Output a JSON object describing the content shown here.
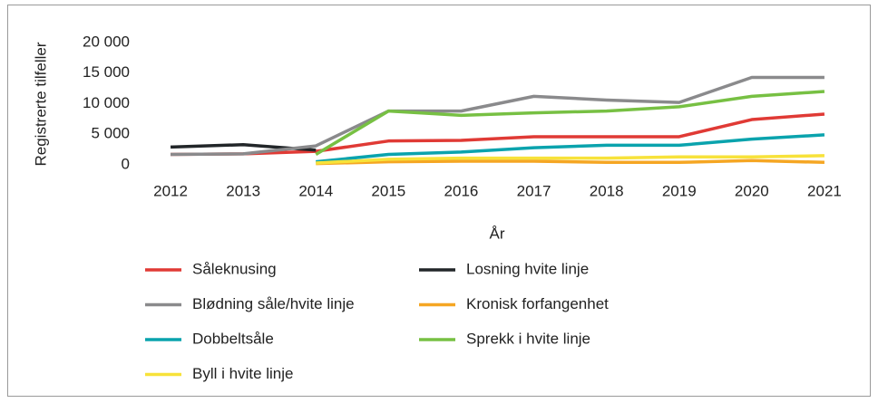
{
  "chart_data": {
    "type": "line",
    "y_label": "Registrerte tilfeller",
    "x_label": "År",
    "categories": [
      "2012",
      "2013",
      "2014",
      "2015",
      "2016",
      "2017",
      "2018",
      "2019",
      "2020",
      "2021"
    ],
    "ylim": [
      0,
      20000
    ],
    "yticks": [
      0,
      {
        "value": 5000,
        "label": "5 000"
      },
      {
        "value": 10000,
        "label": "10 000"
      },
      {
        "value": 15000,
        "label": "15 000"
      },
      {
        "value": 20000,
        "label": "20 000"
      }
    ],
    "series": [
      {
        "name": "Såleknusing",
        "color": "#e03a35",
        "values": [
          1700,
          1800,
          2200,
          3900,
          4000,
          4600,
          4600,
          4600,
          7400,
          8300
        ]
      },
      {
        "name": "Losning hvite linje",
        "color": "#222629",
        "values": [
          2900,
          3300,
          2400,
          null,
          null,
          null,
          null,
          null,
          null,
          null
        ]
      },
      {
        "name": "Blødning såle/hvite linje",
        "color": "#8a8a8c",
        "values": [
          1700,
          1800,
          3100,
          8800,
          8800,
          11200,
          10600,
          10200,
          14300,
          14300
        ]
      },
      {
        "name": "Kronisk forfangenhet",
        "color": "#f5a623",
        "values": [
          null,
          null,
          200,
          500,
          600,
          600,
          400,
          400,
          700,
          400
        ]
      },
      {
        "name": "Dobbeltsåle",
        "color": "#0aa3ad",
        "values": [
          null,
          null,
          500,
          1700,
          2100,
          2800,
          3200,
          3200,
          4200,
          4900
        ]
      },
      {
        "name": "Sprekk i hvite linje",
        "color": "#77c043",
        "values": [
          null,
          null,
          1700,
          8800,
          8100,
          8500,
          8800,
          9500,
          11200,
          12000
        ]
      },
      {
        "name": "Byll i hvite linje",
        "color": "#f7e23a",
        "values": [
          null,
          null,
          300,
          900,
          1100,
          1100,
          1100,
          1300,
          1300,
          1500
        ]
      }
    ]
  }
}
